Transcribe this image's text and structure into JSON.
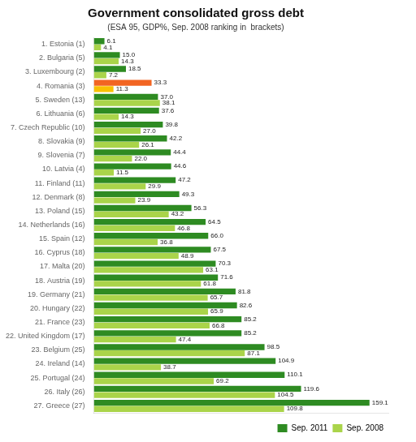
{
  "chart_data": {
    "type": "bar",
    "orientation": "horizontal",
    "title": "Government consolidated gross debt",
    "subtitle": "(ESA 95, GDP%, Sep. 2008 ranking in  brackets)",
    "categories": [
      "1. Estonia (1)",
      "2. Bulgaria (5)",
      "3. Luxembourg (2)",
      "4. Romania (3)",
      "5. Sweden (13)",
      "6. Lithuania (6)",
      "7. Czech Republic (10)",
      "8. Slovakia (9)",
      "9. Slovenia (7)",
      "10. Latvia (4)",
      "11. Finland (11)",
      "12. Denmark (8)",
      "13. Poland (15)",
      "14. Netherlands (16)",
      "15. Spain (12)",
      "16. Cyprus (18)",
      "17. Malta (20)",
      "18. Austria (19)",
      "19. Germany (21)",
      "20. Hungary (22)",
      "21. France (23)",
      "22. United Kingdom (17)",
      "23. Belgium (25)",
      "24. Ireland (14)",
      "25. Portugal (24)",
      "26. Italy (26)",
      "27. Greece (27)"
    ],
    "series": [
      {
        "name": "Sep. 2011",
        "color": "#2e8b22",
        "colors": [
          "#2e8b22",
          "#2e8b22",
          "#2e8b22",
          "#f26522",
          "#2e8b22",
          "#2e8b22",
          "#2e8b22",
          "#2e8b22",
          "#2e8b22",
          "#2e8b22",
          "#2e8b22",
          "#2e8b22",
          "#2e8b22",
          "#2e8b22",
          "#2e8b22",
          "#2e8b22",
          "#2e8b22",
          "#2e8b22",
          "#2e8b22",
          "#2e8b22",
          "#2e8b22",
          "#2e8b22",
          "#2e8b22",
          "#2e8b22",
          "#2e8b22",
          "#2e8b22",
          "#2e8b22"
        ],
        "values": [
          6.1,
          15.0,
          18.5,
          33.3,
          37.0,
          37.6,
          39.8,
          42.2,
          44.4,
          44.6,
          47.2,
          49.3,
          56.3,
          64.5,
          66.0,
          67.5,
          70.3,
          71.6,
          81.8,
          82.6,
          85.2,
          85.2,
          98.5,
          104.9,
          110.1,
          119.6,
          159.1
        ],
        "value_labels": [
          "6.1",
          "15.0",
          "18.5",
          "33.3",
          "37.0",
          "37.6",
          "39.8",
          "42.2",
          "44.4",
          "44.6",
          "47.2",
          "49.3",
          "56.3",
          "64.5",
          "66.0",
          "67.5",
          "70.3",
          "71.6",
          "81.8",
          "82.6",
          "85.2",
          "85.2",
          "98.5",
          "104.9",
          "110.1",
          "119.6",
          "159.1"
        ]
      },
      {
        "name": "Sep. 2008",
        "color": "#aad44a",
        "colors": [
          "#aad44a",
          "#aad44a",
          "#aad44a",
          "#f9c000",
          "#aad44a",
          "#aad44a",
          "#aad44a",
          "#aad44a",
          "#aad44a",
          "#aad44a",
          "#aad44a",
          "#aad44a",
          "#aad44a",
          "#aad44a",
          "#aad44a",
          "#aad44a",
          "#aad44a",
          "#aad44a",
          "#aad44a",
          "#aad44a",
          "#aad44a",
          "#aad44a",
          "#aad44a",
          "#aad44a",
          "#aad44a",
          "#aad44a",
          "#aad44a"
        ],
        "values": [
          4.1,
          14.3,
          7.2,
          11.3,
          38.1,
          14.3,
          27.0,
          26.1,
          22.0,
          11.5,
          29.9,
          23.9,
          43.2,
          46.8,
          36.8,
          48.9,
          63.1,
          61.8,
          65.7,
          65.9,
          66.8,
          47.4,
          87.1,
          38.7,
          69.2,
          104.5,
          109.8
        ],
        "value_labels": [
          "4.1",
          "14.3",
          "7.2",
          "11.3",
          "38.1",
          "14.3",
          "27.0",
          "26.1",
          "22.0",
          "11.5",
          "29.9",
          "23.9",
          "43.2",
          "46.8",
          "36.8",
          "48.9",
          "63.1",
          "61.8",
          "65.7",
          "65.9",
          "66.8",
          "47.4",
          "87.1",
          "38.7",
          "69.2",
          "104.5",
          "109.8"
        ]
      }
    ],
    "xlim": [
      0,
      170
    ],
    "tick_labels": "y",
    "grid": false,
    "legend": "lower right",
    "data_labels": true
  }
}
